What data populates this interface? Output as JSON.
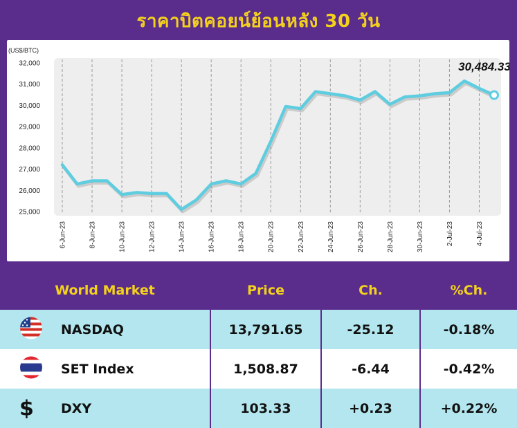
{
  "header": {
    "title": "ราคาบิตคอยน์ย้อนหลัง 30 วัน"
  },
  "chart_data": {
    "type": "line",
    "title": "ราคาบิตคอยน์ย้อนหลัง 30 วัน",
    "unit_label": "(US$/BTC)",
    "ylim": [
      25000,
      32000
    ],
    "y_ticks": [
      "25,000",
      "26,000",
      "27,000",
      "28,000",
      "29,000",
      "30,000",
      "31,000",
      "32,000"
    ],
    "x_tick_labels": [
      "6-Jun-23",
      "8-Jun-23",
      "10-Jun-23",
      "12-Jun-23",
      "14-Jun-23",
      "16-Jun-23",
      "18-Jun-23",
      "20-Jun-23",
      "22-Jun-23",
      "24-Jun-23",
      "26-Jun-23",
      "28-Jun-23",
      "30-Jun-23",
      "2-Jul-23",
      "4-Jul-23"
    ],
    "grid": "vertical dashed",
    "series": [
      {
        "x": [
          "6-Jun-23",
          "7-Jun-23",
          "8-Jun-23",
          "9-Jun-23",
          "10-Jun-23",
          "11-Jun-23",
          "12-Jun-23",
          "13-Jun-23",
          "14-Jun-23",
          "15-Jun-23",
          "16-Jun-23",
          "17-Jun-23",
          "18-Jun-23",
          "19-Jun-23",
          "20-Jun-23",
          "21-Jun-23",
          "22-Jun-23",
          "23-Jun-23",
          "24-Jun-23",
          "25-Jun-23",
          "26-Jun-23",
          "27-Jun-23",
          "28-Jun-23",
          "29-Jun-23",
          "30-Jun-23",
          "1-Jul-23",
          "2-Jul-23",
          "3-Jul-23",
          "4-Jul-23",
          "5-Jul-23"
        ],
        "values": [
          27200,
          26300,
          26450,
          26450,
          25800,
          25900,
          25850,
          25850,
          25100,
          25550,
          26300,
          26450,
          26300,
          26800,
          28300,
          29950,
          29850,
          30650,
          30550,
          30450,
          30250,
          30650,
          30050,
          30400,
          30450,
          30550,
          30600,
          31150,
          30800,
          30484.33
        ]
      }
    ],
    "last_value_label": "30,484.33",
    "line_color": "#5fcde0"
  },
  "table": {
    "headers": {
      "name": "World Market",
      "price": "Price",
      "ch": "Ch.",
      "pch": "%Ch."
    },
    "rows": [
      {
        "name": "NASDAQ",
        "price": "13,791.65",
        "ch": "-25.12",
        "pch": "-0.18%",
        "icon": "us-flag-icon"
      },
      {
        "name": "SET Index",
        "price": "1,508.87",
        "ch": "-6.44",
        "pch": "-0.42%",
        "icon": "thai-flag-icon"
      },
      {
        "name": "DXY",
        "price": "103.33",
        "ch": "+0.23",
        "pch": "+0.22%",
        "icon": "dollar-icon",
        "icon_glyph": "$"
      }
    ]
  },
  "colors": {
    "brand_purple": "#5a2d8c",
    "title_yellow": "#f4d21c",
    "row_highlight": "#b3e6ee",
    "plot_bg": "#eeeeee"
  }
}
